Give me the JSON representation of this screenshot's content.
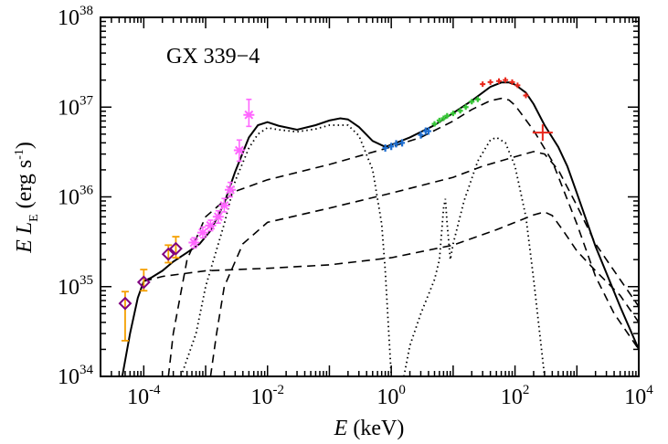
{
  "chart_data": {
    "type": "scatter",
    "annotation": "GX 339−4",
    "xlabel": {
      "var": "E",
      "unit": " (keV)"
    },
    "ylabel": {
      "var": "E L",
      "sub": "E",
      "unit": " (erg s",
      "sup": "-1",
      "close": ")"
    },
    "x_scale": "log",
    "y_scale": "log",
    "xlim": [
      2e-05,
      10000
    ],
    "ylim": [
      1e+34,
      1e+38
    ],
    "grid": false,
    "x_ticks": [
      {
        "value": 0.0001,
        "base": "10",
        "exp": "-4"
      },
      {
        "value": 0.01,
        "base": "10",
        "exp": "-2"
      },
      {
        "value": 1,
        "base": "10",
        "exp": "0"
      },
      {
        "value": 100,
        "base": "10",
        "exp": "2"
      },
      {
        "value": 10000,
        "base": "10",
        "exp": "4"
      }
    ],
    "y_ticks": [
      {
        "value": 1e+34,
        "base": "10",
        "exp": "34"
      },
      {
        "value": 1e+35,
        "base": "10",
        "exp": "35"
      },
      {
        "value": 1e+36,
        "base": "10",
        "exp": "36"
      },
      {
        "value": 1e+37,
        "base": "10",
        "exp": "37"
      },
      {
        "value": 1e+38,
        "base": "10",
        "exp": "38"
      }
    ],
    "colors": {
      "model": "#000000",
      "radio_diamond": "#800080",
      "radio_err": "#f5a000",
      "optir": "#ff66ff",
      "soft_x": "#1f6fd1",
      "mid_x": "#35c535",
      "hard_x": "#e8261a"
    },
    "series": [
      {
        "role": "total_model",
        "style": "solid",
        "points": [
          [
            4.5e-05,
            1e+34
          ],
          [
            6e-05,
            3e+34
          ],
          [
            8e-05,
            7.5e+34
          ],
          [
            0.0001,
            1.15e+35
          ],
          [
            0.00013,
            1.25e+35
          ],
          [
            0.0002,
            1.5e+35
          ],
          [
            0.0003,
            1.9e+35
          ],
          [
            0.0005,
            2.4e+35
          ],
          [
            0.0008,
            3e+35
          ],
          [
            0.0012,
            4.2e+35
          ],
          [
            0.002,
            8.5e+35
          ],
          [
            0.003,
            1.9e+36
          ],
          [
            0.005,
            4.6e+36
          ],
          [
            0.007,
            6.3e+36
          ],
          [
            0.01,
            6.8e+36
          ],
          [
            0.015,
            6.2e+36
          ],
          [
            0.03,
            5.6e+36
          ],
          [
            0.06,
            6.3e+36
          ],
          [
            0.1,
            7.1e+36
          ],
          [
            0.15,
            7.5e+36
          ],
          [
            0.2,
            7.3e+36
          ],
          [
            0.3,
            6e+36
          ],
          [
            0.5,
            4.2e+36
          ],
          [
            0.8,
            3.6e+36
          ],
          [
            1,
            3.8e+36
          ],
          [
            2,
            4.6e+36
          ],
          [
            5,
            6.3e+36
          ],
          [
            10,
            8.6e+36
          ],
          [
            20,
            1.18e+37
          ],
          [
            40,
            1.68e+37
          ],
          [
            60,
            1.88e+37
          ],
          [
            80,
            1.88e+37
          ],
          [
            100,
            1.78e+37
          ],
          [
            150,
            1.45e+37
          ],
          [
            200,
            1.08e+37
          ],
          [
            300,
            6.3e+36
          ],
          [
            500,
            3.6e+36
          ],
          [
            700,
            2.2e+36
          ],
          [
            1000,
            1.1e+36
          ],
          [
            2000,
            2.8e+35
          ],
          [
            5000,
            6e+34
          ],
          [
            10000,
            2e+34
          ]
        ]
      },
      {
        "role": "disk_component",
        "style": "dotted",
        "points": [
          [
            0.0004,
            1e+34
          ],
          [
            0.0007,
            3e+34
          ],
          [
            0.001,
            1e+35
          ],
          [
            0.002,
            5e+35
          ],
          [
            0.003,
            1.5e+36
          ],
          [
            0.005,
            3.5e+36
          ],
          [
            0.007,
            5e+36
          ],
          [
            0.01,
            5.9e+36
          ],
          [
            0.015,
            5.6e+36
          ],
          [
            0.03,
            5.3e+36
          ],
          [
            0.06,
            5.7e+36
          ],
          [
            0.1,
            6.3e+36
          ],
          [
            0.2,
            6.3e+36
          ],
          [
            0.3,
            4.8e+36
          ],
          [
            0.5,
            2e+36
          ],
          [
            0.7,
            5e+35
          ],
          [
            0.8,
            1.5e+35
          ],
          [
            0.9,
            3.5e+34
          ],
          [
            1,
            1e+34
          ]
        ]
      },
      {
        "role": "reflection_component",
        "style": "dotted",
        "points": [
          [
            1.6,
            1e+34
          ],
          [
            2,
            2.2e+34
          ],
          [
            3,
            5e+34
          ],
          [
            5,
            1.2e+35
          ],
          [
            6,
            2e+35
          ],
          [
            7,
            7.5e+35
          ],
          [
            7.5,
            9.5e+35
          ],
          [
            8,
            5e+35
          ],
          [
            9,
            2e+35
          ],
          [
            10,
            3e+35
          ],
          [
            15,
            9e+35
          ],
          [
            25,
            2.5e+36
          ],
          [
            40,
            4.3e+36
          ],
          [
            50,
            4.6e+36
          ],
          [
            70,
            4e+36
          ],
          [
            100,
            2.2e+36
          ],
          [
            150,
            6e+35
          ],
          [
            200,
            1.2e+35
          ],
          [
            300,
            1e+34
          ]
        ]
      },
      {
        "role": "component_a",
        "style": "dashed",
        "points": [
          [
            0.00025,
            1e+34
          ],
          [
            0.0003,
            3e+34
          ],
          [
            0.0005,
            2e+35
          ],
          [
            0.001,
            6e+35
          ],
          [
            0.003,
            1.15e+36
          ],
          [
            0.01,
            1.55e+36
          ],
          [
            0.1,
            2.3e+36
          ],
          [
            1,
            3.6e+36
          ],
          [
            3,
            4.6e+36
          ],
          [
            10,
            7e+36
          ],
          [
            20,
            9.4e+36
          ],
          [
            40,
            1.18e+37
          ],
          [
            60,
            1.25e+37
          ],
          [
            80,
            1.2e+37
          ],
          [
            100,
            1.05e+37
          ],
          [
            200,
            5.5e+36
          ],
          [
            400,
            2.5e+36
          ],
          [
            1000,
            5e+35
          ],
          [
            2000,
            1.3e+35
          ],
          [
            4000,
            5e+34
          ],
          [
            10000,
            2e+34
          ]
        ]
      },
      {
        "role": "component_b",
        "style": "dashed",
        "points": [
          [
            0.0012,
            1e+34
          ],
          [
            0.0015,
            3e+34
          ],
          [
            0.002,
            1e+35
          ],
          [
            0.004,
            3e+35
          ],
          [
            0.01,
            5.2e+35
          ],
          [
            0.1,
            7.5e+35
          ],
          [
            1,
            1.1e+36
          ],
          [
            10,
            1.65e+36
          ],
          [
            30,
            2.2e+36
          ],
          [
            100,
            2.8e+36
          ],
          [
            200,
            3.2e+36
          ],
          [
            300,
            3e+36
          ],
          [
            500,
            2e+36
          ],
          [
            1000,
            8e+35
          ],
          [
            2000,
            3e+35
          ],
          [
            5000,
            1.2e+35
          ],
          [
            10000,
            6e+34
          ]
        ]
      },
      {
        "role": "component_c",
        "style": "dashed",
        "points": [
          [
            0.0001,
            1.15e+35
          ],
          [
            0.0002,
            1.3e+35
          ],
          [
            0.001,
            1.5e+35
          ],
          [
            0.01,
            1.6e+35
          ],
          [
            0.1,
            1.75e+35
          ],
          [
            1,
            2.1e+35
          ],
          [
            10,
            2.9e+35
          ],
          [
            50,
            4.3e+35
          ],
          [
            100,
            5.2e+35
          ],
          [
            200,
            6.3e+35
          ],
          [
            300,
            6.8e+35
          ],
          [
            400,
            6.2e+35
          ],
          [
            600,
            4.2e+35
          ],
          [
            1000,
            2.5e+35
          ],
          [
            2000,
            1.5e+35
          ],
          [
            5000,
            8e+34
          ],
          [
            10000,
            4e+34
          ]
        ]
      }
    ],
    "radio_points": [
      {
        "x": 5e-05,
        "y": 6.5e+34,
        "ylo": 2.5e+34,
        "yhi": 8.8e+34
      },
      {
        "x": 0.0001,
        "y": 1.12e+35,
        "ylo": 9e+34,
        "yhi": 1.55e+35
      },
      {
        "x": 0.00025,
        "y": 2.3e+35,
        "ylo": 1.85e+35,
        "yhi": 2.9e+35
      },
      {
        "x": 0.00033,
        "y": 2.65e+35,
        "ylo": 2.1e+35,
        "yhi": 3.6e+35
      }
    ],
    "optir_points": [
      {
        "x": 0.00065,
        "y": 3.1e+35,
        "ylo": 2.7e+35,
        "yhi": 3.5e+35
      },
      {
        "x": 0.0009,
        "y": 4e+35,
        "ylo": 3.5e+35,
        "yhi": 4.6e+35
      },
      {
        "x": 0.0012,
        "y": 4.8e+35,
        "ylo": 4.2e+35,
        "yhi": 5.5e+35
      },
      {
        "x": 0.0016,
        "y": 6e+35,
        "ylo": 5.1e+35,
        "yhi": 7e+35
      },
      {
        "x": 0.002,
        "y": 8e+35,
        "ylo": 6.8e+35,
        "yhi": 9.6e+35
      },
      {
        "x": 0.0025,
        "y": 1.2e+36,
        "ylo": 1e+36,
        "yhi": 1.45e+36
      },
      {
        "x": 0.0035,
        "y": 3.3e+36,
        "ylo": 2.5e+36,
        "yhi": 4.3e+36
      },
      {
        "x": 0.005,
        "y": 8.2e+36,
        "ylo": 6.1e+36,
        "yhi": 1.22e+37
      }
    ],
    "soft_x_points": [
      [
        0.8,
        3.5e+36
      ],
      [
        1,
        3.65e+36
      ],
      [
        1.2,
        3.9e+36
      ],
      [
        1.5,
        4e+36
      ],
      [
        3,
        4.9e+36
      ],
      [
        3.6,
        5.4e+36
      ],
      [
        4,
        5.4e+36
      ]
    ],
    "mid_x_points": [
      [
        5,
        6.5e+36
      ],
      [
        6,
        7.1e+36
      ],
      [
        7,
        7.5e+36
      ],
      [
        8,
        8e+36
      ],
      [
        10,
        8.5e+36
      ],
      [
        13,
        9.1e+36
      ],
      [
        16,
        1e+37
      ],
      [
        20,
        1.15e+37
      ],
      [
        25,
        1.22e+37
      ]
    ],
    "hard_x_points": [
      [
        30,
        1.8e+37
      ],
      [
        40,
        1.9e+37
      ],
      [
        55,
        1.95e+37
      ],
      [
        70,
        2e+37
      ],
      [
        90,
        1.9e+37
      ],
      [
        110,
        1.75e+37
      ],
      [
        150,
        1.35e+37
      ],
      [
        280,
        5.2e+36
      ]
    ]
  }
}
